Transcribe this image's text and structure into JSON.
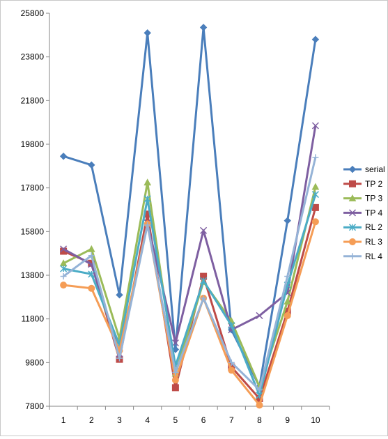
{
  "chart_data": {
    "type": "line",
    "title": "",
    "xlabel": "",
    "ylabel": "",
    "categories": [
      "1",
      "2",
      "3",
      "4",
      "5",
      "6",
      "7",
      "8",
      "9",
      "10"
    ],
    "ylim": [
      7800,
      25800
    ],
    "yticks": [
      7800,
      9800,
      11800,
      13800,
      15800,
      17800,
      19800,
      21800,
      23800,
      25800
    ],
    "grid": false,
    "legend": "right",
    "series": [
      {
        "name": "serial",
        "color": "#4a7ebb",
        "marker": "diamond",
        "values": [
          19250,
          18850,
          12900,
          24900,
          10400,
          25150,
          11300,
          8700,
          16300,
          24600
        ]
      },
      {
        "name": "TP 2",
        "color": "#be4b48",
        "marker": "square",
        "values": [
          14900,
          14350,
          9950,
          16600,
          8650,
          13750,
          9600,
          8150,
          12150,
          16900
        ]
      },
      {
        "name": "TP 3",
        "color": "#9bbb59",
        "marker": "triangle",
        "values": [
          14350,
          15000,
          10900,
          18050,
          9300,
          13500,
          11700,
          8700,
          12600,
          17850
        ]
      },
      {
        "name": "TP 4",
        "color": "#7e5fa1",
        "marker": "x",
        "values": [
          15000,
          14300,
          10200,
          16200,
          10700,
          15850,
          11300,
          11950,
          13000,
          20650
        ]
      },
      {
        "name": "RL 2",
        "color": "#4bacc6",
        "marker": "asterisk",
        "values": [
          14100,
          13850,
          10600,
          17300,
          9650,
          13550,
          11500,
          8300,
          13350,
          17500
        ]
      },
      {
        "name": "RL 3",
        "color": "#f59d56",
        "marker": "circle",
        "values": [
          13350,
          13200,
          10350,
          16150,
          9000,
          12750,
          9450,
          7850,
          11950,
          16250
        ]
      },
      {
        "name": "RL 4",
        "color": "#95b3d7",
        "marker": "plus",
        "values": [
          13750,
          14700,
          10000,
          16100,
          9350,
          12750,
          9800,
          8550,
          13750,
          19200
        ]
      }
    ]
  }
}
